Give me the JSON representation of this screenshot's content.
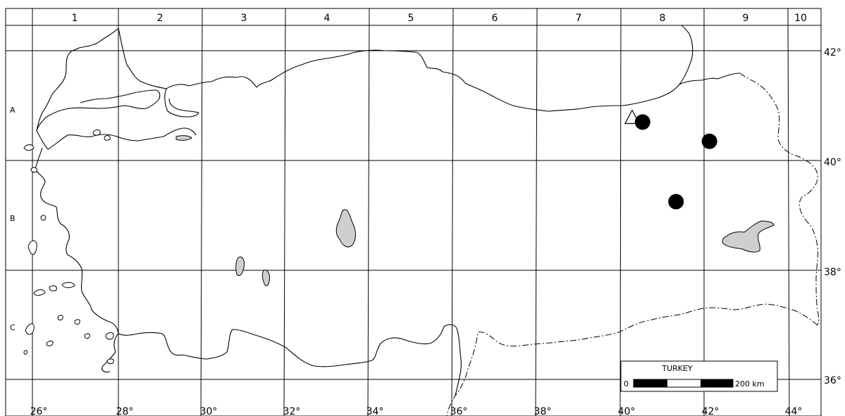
{
  "grid": {
    "columns": [
      "1",
      "2",
      "3",
      "4",
      "5",
      "6",
      "7",
      "8",
      "9",
      "10"
    ],
    "rows": [
      "A",
      "B",
      "C"
    ]
  },
  "axes": {
    "longitudes": [
      "26°",
      "28°",
      "30°",
      "32°",
      "34°",
      "36°",
      "38°",
      "40°",
      "42°",
      "44°"
    ],
    "latitudes": [
      "42°",
      "40°",
      "38°",
      "36°"
    ]
  },
  "legend": {
    "title": "TURKEY",
    "scale_start": "0",
    "scale_end": "200 km"
  },
  "markers": [
    {
      "type": "circle",
      "lon": 40.6,
      "lat": 40.7
    },
    {
      "type": "circle",
      "lon": 42.2,
      "lat": 40.35
    },
    {
      "type": "circle",
      "lon": 41.4,
      "lat": 39.25
    },
    {
      "type": "triangle",
      "lon": 40.35,
      "lat": 40.75
    }
  ],
  "colors": {
    "lake": "#cfcfcf",
    "marker": "#000000"
  }
}
